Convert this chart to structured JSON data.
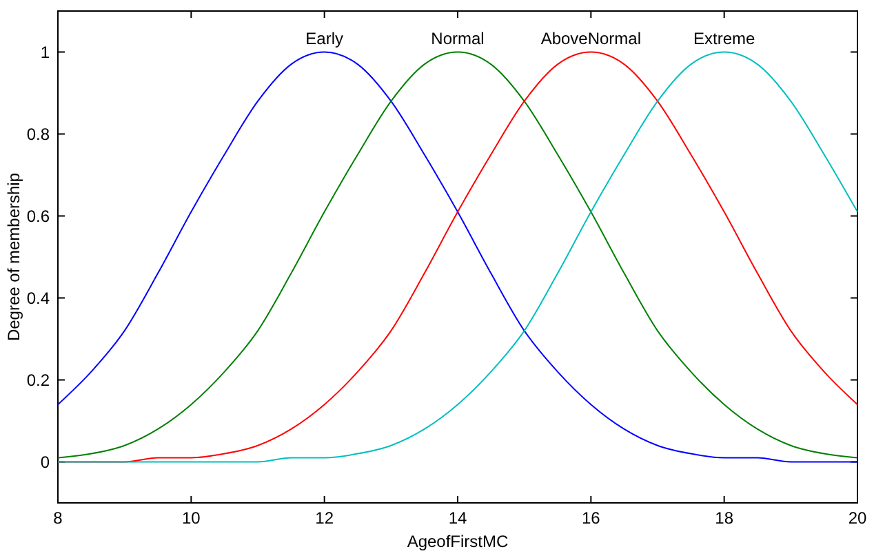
{
  "chart_data": {
    "type": "line",
    "xlabel": "AgeofFirstMC",
    "ylabel": "Degree of membership",
    "x": [
      8,
      8.5,
      9,
      9.5,
      10,
      10.5,
      11,
      11.5,
      12,
      12.5,
      13,
      13.5,
      14,
      14.5,
      15,
      15.5,
      16,
      16.5,
      17,
      17.5,
      18,
      18.5,
      19,
      19.5,
      20
    ],
    "series": [
      {
        "name": "Early",
        "color": "#0000ff",
        "values": [
          0.14,
          0.22,
          0.32,
          0.46,
          0.61,
          0.75,
          0.88,
          0.97,
          1,
          0.97,
          0.88,
          0.75,
          0.61,
          0.46,
          0.32,
          0.22,
          0.14,
          0.08,
          0.04,
          0.02,
          0.01,
          0.01,
          0,
          0,
          0
        ]
      },
      {
        "name": "Normal",
        "color": "#008000",
        "values": [
          0.01,
          0.02,
          0.04,
          0.08,
          0.14,
          0.22,
          0.32,
          0.46,
          0.61,
          0.75,
          0.88,
          0.97,
          1,
          0.97,
          0.88,
          0.75,
          0.61,
          0.46,
          0.32,
          0.22,
          0.14,
          0.08,
          0.04,
          0.02,
          0.01
        ]
      },
      {
        "name": "AboveNormal",
        "color": "#ff0000",
        "values": [
          0,
          0,
          0,
          0.01,
          0.01,
          0.02,
          0.04,
          0.08,
          0.14,
          0.22,
          0.32,
          0.46,
          0.61,
          0.75,
          0.88,
          0.97,
          1,
          0.97,
          0.88,
          0.75,
          0.61,
          0.46,
          0.32,
          0.22,
          0.14
        ]
      },
      {
        "name": "Extreme",
        "color": "#00bfbf",
        "values": [
          0,
          0,
          0,
          0,
          0,
          0,
          0,
          0.01,
          0.01,
          0.02,
          0.04,
          0.08,
          0.14,
          0.22,
          0.32,
          0.46,
          0.61,
          0.75,
          0.88,
          0.97,
          1,
          0.97,
          0.88,
          0.75,
          0.61
        ]
      }
    ],
    "xlim": [
      8,
      20
    ],
    "xticks": [
      8,
      10,
      12,
      14,
      16,
      18,
      20
    ],
    "ylim": [
      -0.1,
      1.1
    ],
    "yticks": [
      0,
      0.2,
      0.4,
      0.6,
      0.8,
      1
    ],
    "grid": false,
    "legend": false,
    "marker": "none",
    "line_style": "solid"
  }
}
